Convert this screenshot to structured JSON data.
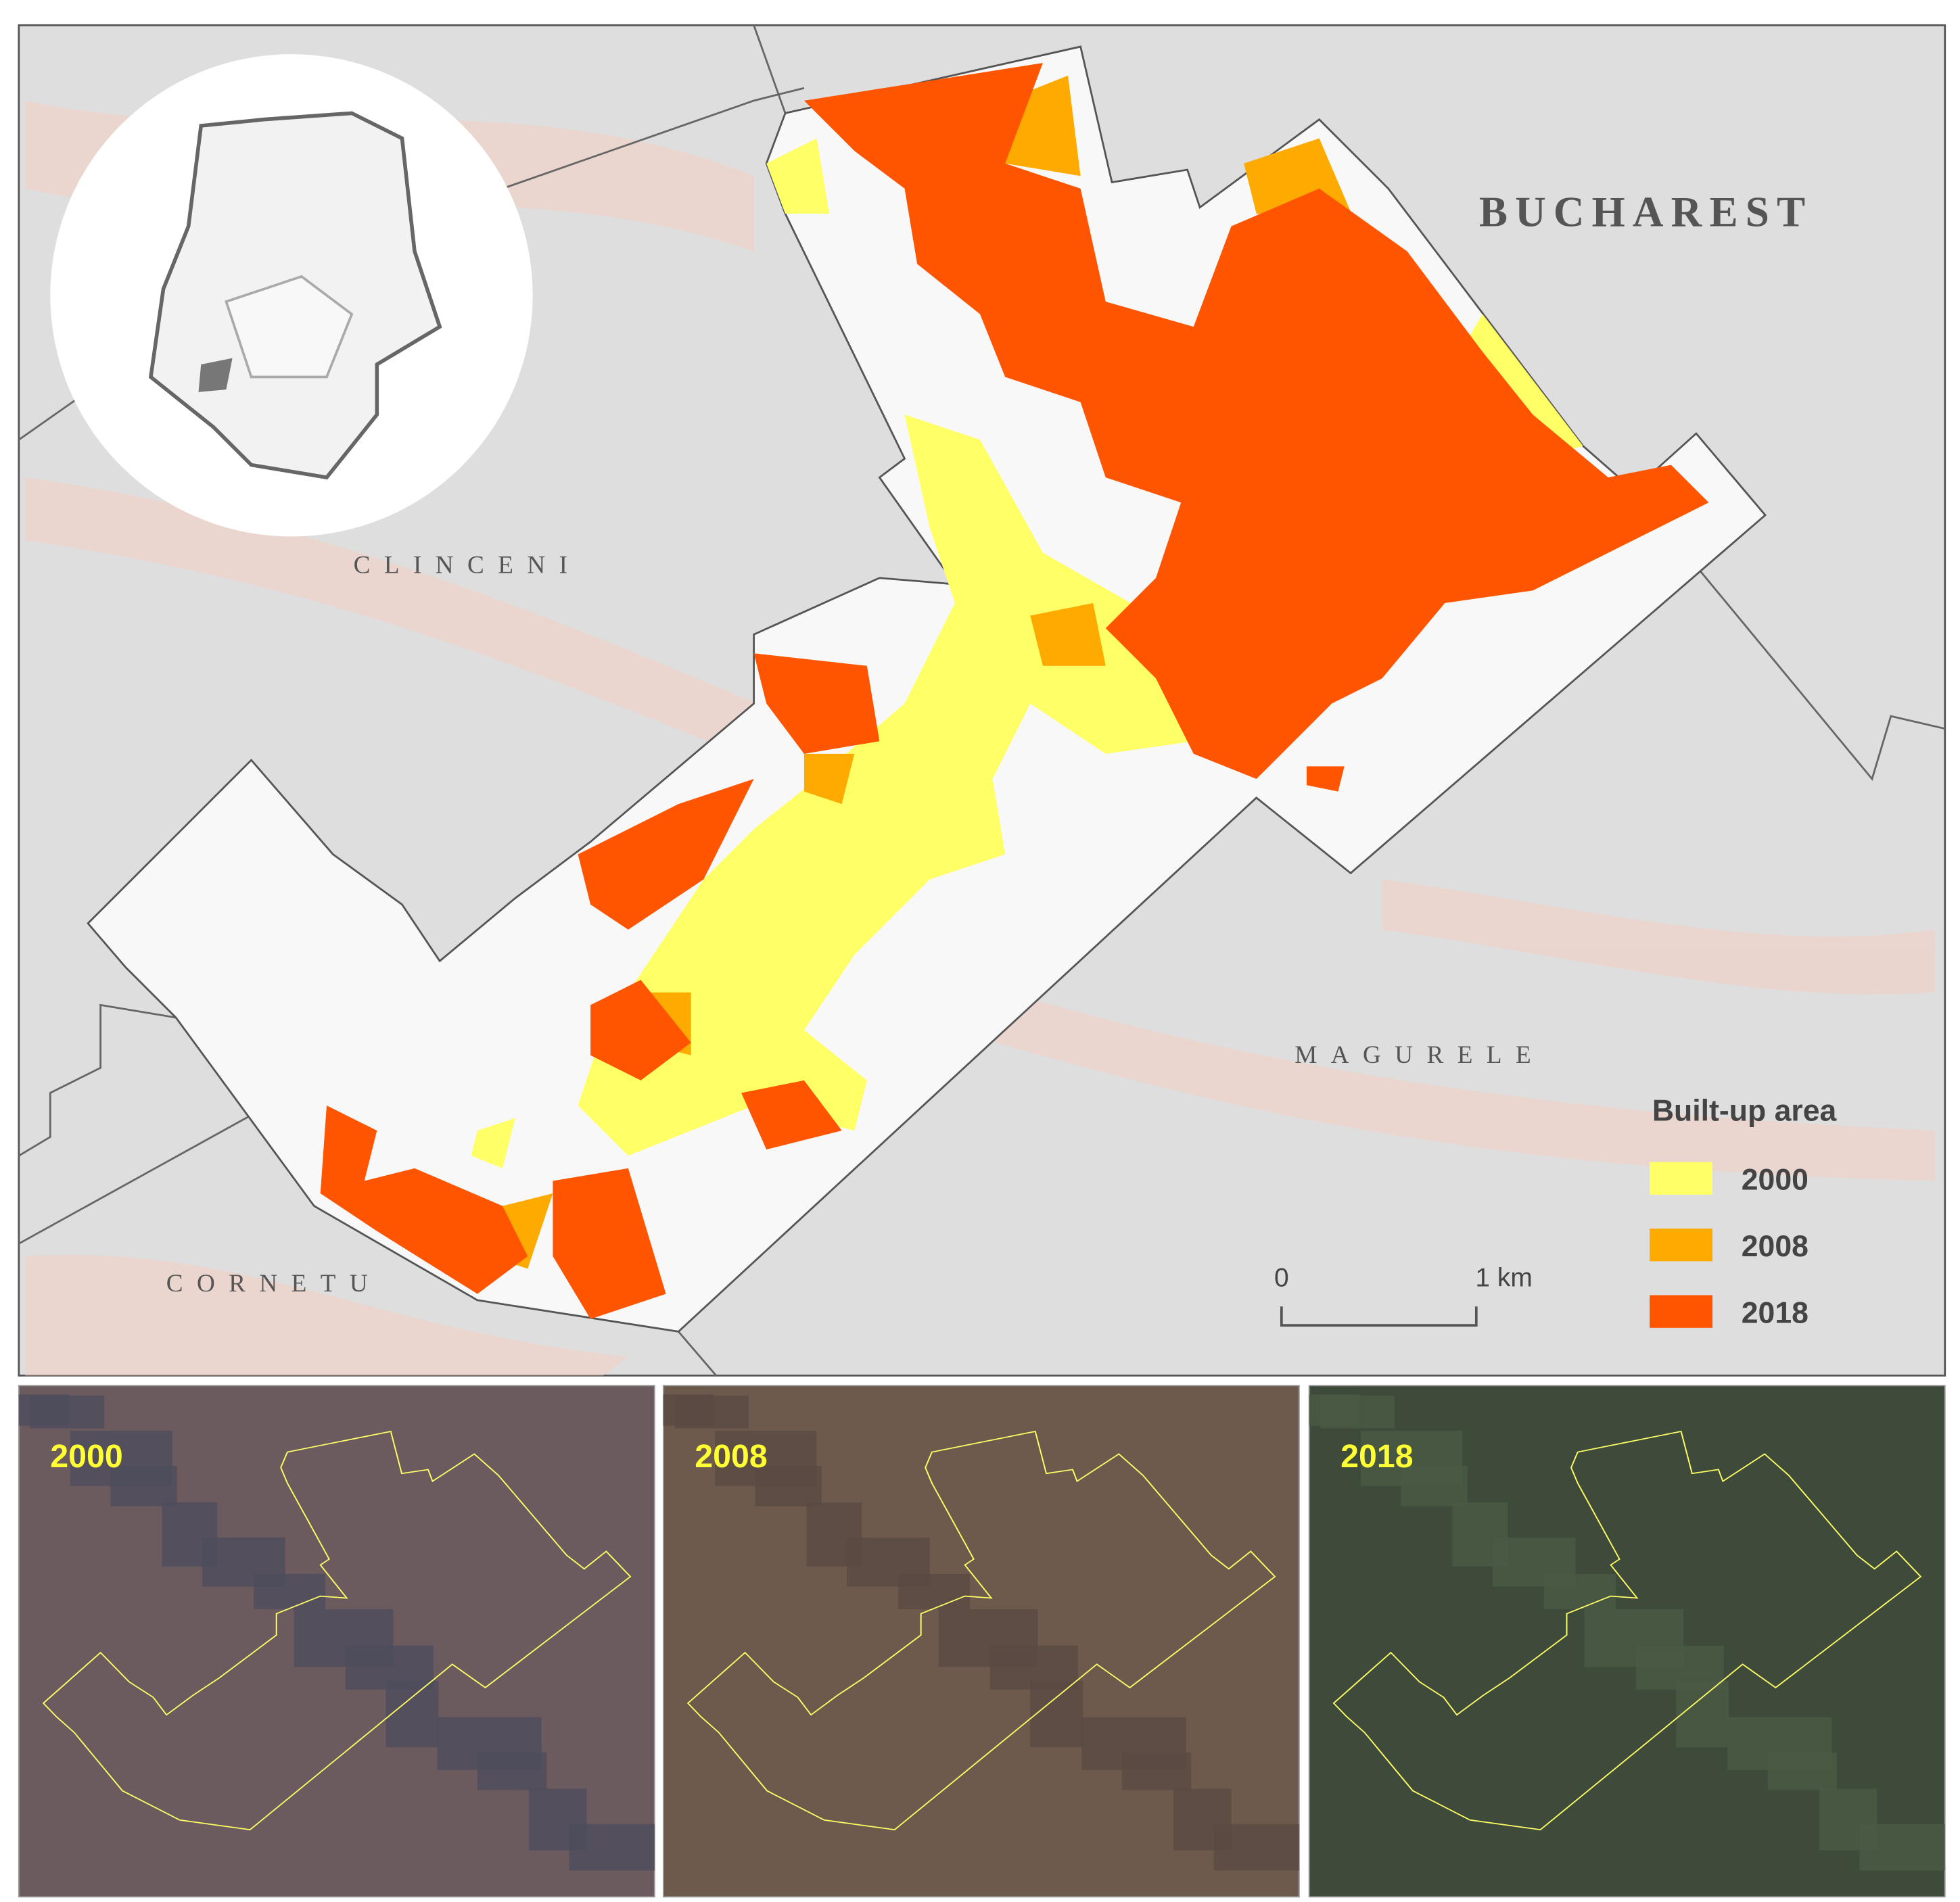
{
  "map": {
    "labels": {
      "bucharest": "BUCHAREST",
      "clinceni": "CLINCENI",
      "magurele": "MAGURELE",
      "cornetu": "CORNETU"
    },
    "legend": {
      "title": "Built-up area",
      "items": [
        {
          "label": "2000",
          "color": "#ffff66"
        },
        {
          "label": "2008",
          "color": "#ffaa00"
        },
        {
          "label": "2018",
          "color": "#ff5500"
        }
      ]
    },
    "scale_bar": {
      "start": "0",
      "end": "1 km"
    }
  },
  "panels": [
    {
      "label": "2000"
    },
    {
      "label": "2008"
    },
    {
      "label": "2018"
    }
  ]
}
